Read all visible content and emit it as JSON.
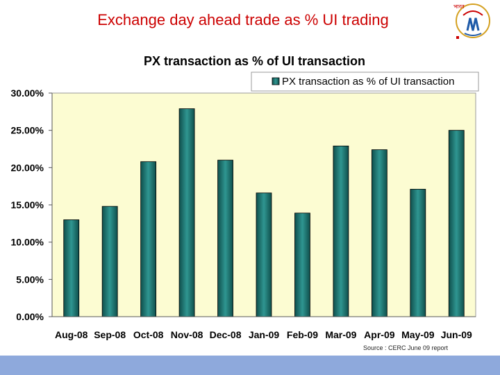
{
  "slide": {
    "title": "Exchange day ahead trade as % UI trading",
    "source": "Source : CERC June 09 report"
  },
  "colors": {
    "title_red": "#cc0000",
    "plot_bg": "#fcfcd2",
    "bar_fill": "#2a8a86",
    "bar_dark": "#0f4f4c",
    "footer": "#8ea9dc"
  },
  "chart_data": {
    "type": "bar",
    "title": "PX transaction as % of UI transaction",
    "categories": [
      "Aug-08",
      "Sep-08",
      "Oct-08",
      "Nov-08",
      "Dec-08",
      "Jan-09",
      "Feb-09",
      "Mar-09",
      "Apr-09",
      "May-09",
      "Jun-09"
    ],
    "series": [
      {
        "name": "PX transaction as % of UI transaction",
        "values": [
          13.0,
          14.8,
          20.8,
          27.9,
          21.0,
          16.6,
          13.9,
          22.9,
          22.4,
          17.1,
          25.0
        ]
      }
    ],
    "ylim": [
      0,
      30
    ],
    "yticks": [
      "0.00%",
      "5.00%",
      "10.00%",
      "15.00%",
      "20.00%",
      "25.00%",
      "30.00%"
    ],
    "grid": false,
    "legend": "top-right"
  }
}
